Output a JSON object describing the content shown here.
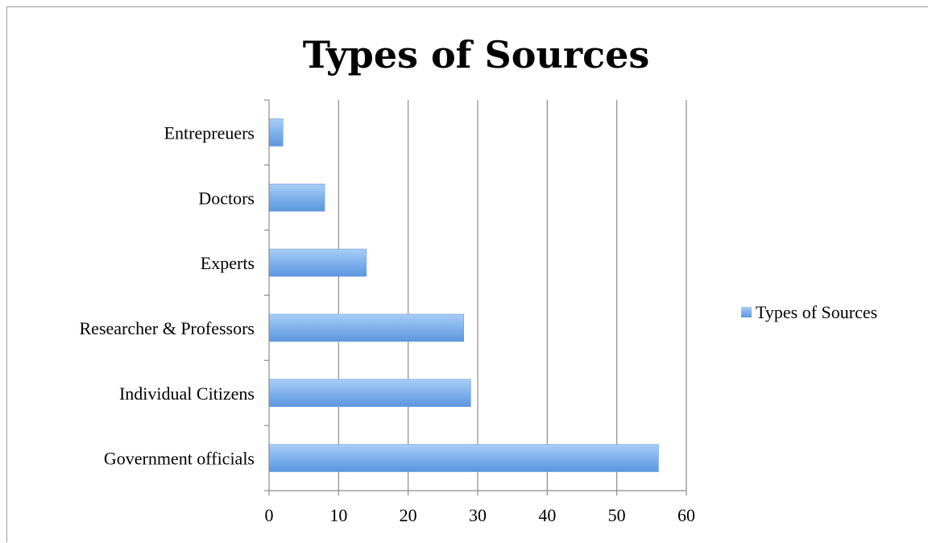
{
  "chart_data": {
    "type": "bar",
    "orientation": "horizontal",
    "title": "Types of Sources",
    "xlabel": "",
    "ylabel": "",
    "categories": [
      "Government officials",
      "Individual Citizens",
      "Researcher & Professors",
      "Experts",
      "Doctors",
      "Entrepreuers"
    ],
    "series": [
      {
        "name": "Types of Sources",
        "values": [
          56,
          29,
          28,
          14,
          8,
          2
        ]
      }
    ],
    "xlim": [
      0,
      60
    ],
    "xticks": [
      0,
      10,
      20,
      30,
      40,
      50,
      60
    ],
    "grid": "vertical",
    "legend_position": "right",
    "bar_color": "#7fb2ec"
  }
}
